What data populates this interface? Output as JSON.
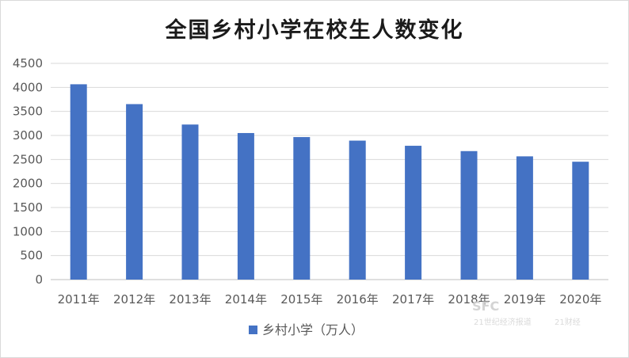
{
  "chart_data": {
    "type": "bar",
    "title": "全国乡村小学在校生人数变化",
    "categories": [
      "2011年",
      "2012年",
      "2013年",
      "2014年",
      "2015年",
      "2016年",
      "2017年",
      "2018年",
      "2019年",
      "2020年"
    ],
    "series": [
      {
        "name": "乡村小学（万人）",
        "values": [
          4065,
          3652,
          3227,
          3050,
          2966,
          2892,
          2785,
          2674,
          2565,
          2453
        ],
        "color": "#4472c4"
      }
    ],
    "yticks": [
      "0",
      "500",
      "1000",
      "1500",
      "2000",
      "2500",
      "3000",
      "3500",
      "4000",
      "4500"
    ],
    "ylim": [
      0,
      4500
    ],
    "grid": true,
    "legend_position": "bottom"
  },
  "watermark": {
    "logo": "SFC",
    "text": "21世纪经济报道",
    "sub": "21财经"
  }
}
